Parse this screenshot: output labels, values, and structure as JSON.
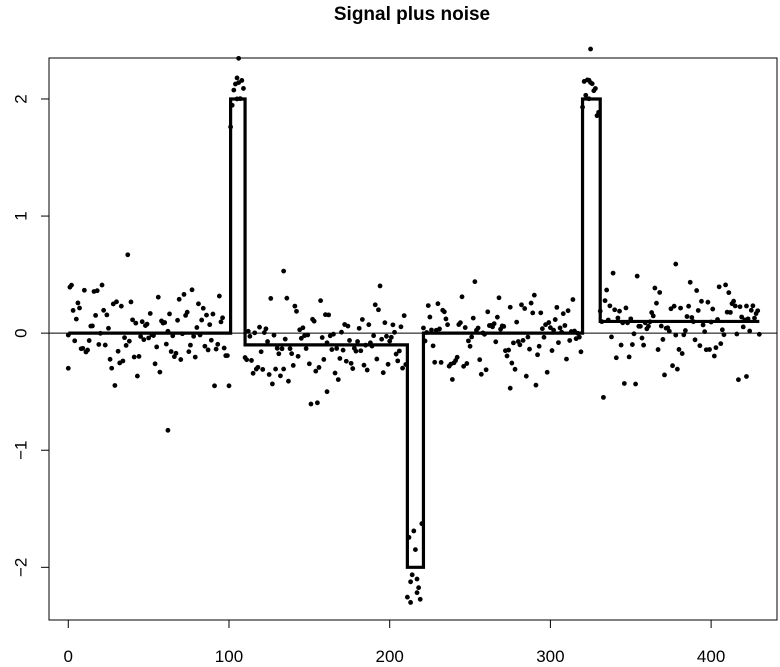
{
  "chart_data": {
    "type": "scatter",
    "title": "Signal plus noise",
    "xlabel": "",
    "ylabel": "",
    "xlim": [
      -12,
      441
    ],
    "ylim": [
      -2.45,
      2.35
    ],
    "x_ticks": [
      0,
      100,
      200,
      300,
      400
    ],
    "x_tick_labels": [
      "0",
      "100",
      "200",
      "300",
      "400"
    ],
    "y_ticks": [
      -2,
      -1,
      0,
      1,
      2
    ],
    "y_tick_labels": [
      "−2",
      "−1",
      "0",
      "1",
      "2"
    ],
    "grid": false,
    "legend": "none",
    "reference_line_y": 0,
    "signal": {
      "name": "signal",
      "x": [
        0,
        101,
        101,
        110,
        110,
        211,
        211,
        221,
        221,
        320,
        320,
        331,
        331,
        430
      ],
      "y": [
        0,
        0,
        2,
        2,
        -0.1,
        -0.1,
        -2,
        -2,
        0,
        0,
        2,
        2,
        0.1,
        0.1
      ]
    },
    "noise_seed": 20231,
    "outliers": [
      {
        "x": 62,
        "y": -0.83
      },
      {
        "x": 105,
        "y": 2.18
      },
      {
        "x": 106,
        "y": 2.14
      },
      {
        "x": 213,
        "y": -2.3
      },
      {
        "x": 217,
        "y": -2.1
      },
      {
        "x": 324,
        "y": 2.16
      },
      {
        "x": 325,
        "y": 2.14
      },
      {
        "x": 378,
        "y": 0.59
      },
      {
        "x": 134,
        "y": 0.53
      },
      {
        "x": 161,
        "y": -0.5
      },
      {
        "x": 422,
        "y": -0.37
      },
      {
        "x": 0,
        "y": -0.3
      },
      {
        "x": 275,
        "y": -0.47
      }
    ],
    "colors": {
      "points": "#000000",
      "line": "#000000"
    }
  }
}
